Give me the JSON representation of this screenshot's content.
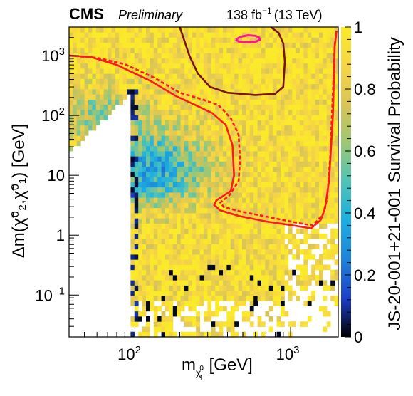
{
  "header": {
    "experiment": "CMS",
    "status": "Preliminary",
    "lumi_value": "138 fb",
    "lumi_exp": "−1",
    "energy": "(13 TeV)"
  },
  "chart_data": {
    "type": "heatmap",
    "x_scale": "log",
    "y_scale": "log",
    "xlim": [
      40,
      2000
    ],
    "ylim": [
      0.02,
      3000
    ],
    "zlim": [
      0,
      1
    ],
    "xlabel": "m",
    "xlabel_sub": "χ̃",
    "xlabel_sub_sup": "0",
    "xlabel_sub_sub": "1",
    "xlabel_unit": "[GeV]",
    "ylabel": "Δm(χ̃⁰₂,χ̃⁰₁) [GeV]",
    "zlabel": "Survival Probability",
    "zlabel_clipped_prefix": "JS-20-001+21-001",
    "x_ticks": [
      {
        "value": 100,
        "base": "10",
        "exp": "2"
      },
      {
        "value": 1000,
        "base": "10",
        "exp": "3"
      }
    ],
    "y_ticks": [
      {
        "value": 0.1,
        "base": "10",
        "exp": "−1"
      },
      {
        "value": 1,
        "label": "1"
      },
      {
        "value": 10,
        "label": "10"
      },
      {
        "value": 100,
        "base": "10",
        "exp": "2"
      },
      {
        "value": 1000,
        "base": "10",
        "exp": "3"
      }
    ],
    "z_ticks": [
      {
        "value": 0,
        "label": "0"
      },
      {
        "value": 0.2,
        "label": "0.2"
      },
      {
        "value": 0.4,
        "label": "0.4"
      },
      {
        "value": 0.6,
        "label": "0.6"
      },
      {
        "value": 0.8,
        "label": "0.8"
      },
      {
        "value": 1,
        "label": "1"
      }
    ],
    "colormap": [
      "#000000",
      "#1c3fc9",
      "#1f83d9",
      "#1dade0",
      "#4fc3b7",
      "#9cc774",
      "#d9c456",
      "#f7d545",
      "#fbea2a"
    ],
    "heatmap_bins": {
      "nx": 70,
      "ny": 60
    },
    "contours": [
      {
        "color": "#ff1a1a",
        "style": "solid",
        "points": [
          [
            40,
            1000
          ],
          [
            55,
            950
          ],
          [
            80,
            700
          ],
          [
            130,
            380
          ],
          [
            190,
            210
          ],
          [
            250,
            150
          ],
          [
            320,
            110
          ],
          [
            390,
            70
          ],
          [
            430,
            32
          ],
          [
            440,
            10
          ],
          [
            420,
            5.5
          ],
          [
            340,
            3.8
          ],
          [
            330,
            3.2
          ],
          [
            360,
            2.6
          ],
          [
            470,
            2.1
          ],
          [
            700,
            1.7
          ],
          [
            1050,
            1.45
          ],
          [
            1350,
            1.3
          ],
          [
            1550,
            1.8
          ],
          [
            1650,
            2.8
          ],
          [
            1750,
            8
          ],
          [
            1850,
            100
          ],
          [
            1900,
            1400
          ],
          [
            1950,
            2600
          ]
        ]
      },
      {
        "color": "#ff1a1a",
        "style": "dashed",
        "points": [
          [
            40,
            1000
          ],
          [
            60,
            920
          ],
          [
            90,
            720
          ],
          [
            140,
            420
          ],
          [
            200,
            240
          ],
          [
            270,
            190
          ],
          [
            350,
            150
          ],
          [
            420,
            90
          ],
          [
            470,
            48
          ],
          [
            480,
            18
          ],
          [
            470,
            8
          ],
          [
            410,
            4.6
          ],
          [
            360,
            3.5
          ],
          [
            380,
            2.95
          ],
          [
            480,
            2.5
          ],
          [
            700,
            2.05
          ],
          [
            1050,
            1.65
          ],
          [
            1380,
            1.45
          ],
          [
            1600,
            2.2
          ],
          [
            1700,
            4
          ],
          [
            1780,
            20
          ],
          [
            1850,
            250
          ],
          [
            1900,
            1500
          ],
          [
            1950,
            2600
          ]
        ]
      },
      {
        "color": "#7a1414",
        "style": "solid",
        "points": [
          [
            200,
            3000
          ],
          [
            230,
            1000
          ],
          [
            260,
            500
          ],
          [
            310,
            300
          ],
          [
            400,
            240
          ],
          [
            600,
            220
          ],
          [
            800,
            230
          ],
          [
            900,
            300
          ],
          [
            920,
            800
          ],
          [
            900,
            1600
          ],
          [
            840,
            2400
          ],
          [
            750,
            3000
          ]
        ]
      },
      {
        "color": "#ff1493",
        "style": "solid",
        "points": [
          [
            452,
            1858
          ],
          [
            485,
            2073
          ],
          [
            540,
            2187
          ],
          [
            600,
            2140
          ],
          [
            635,
            1998
          ],
          [
            640,
            1830
          ],
          [
            600,
            1705
          ],
          [
            520,
            1680
          ],
          [
            470,
            1720
          ],
          [
            452,
            1858
          ]
        ]
      }
    ]
  }
}
